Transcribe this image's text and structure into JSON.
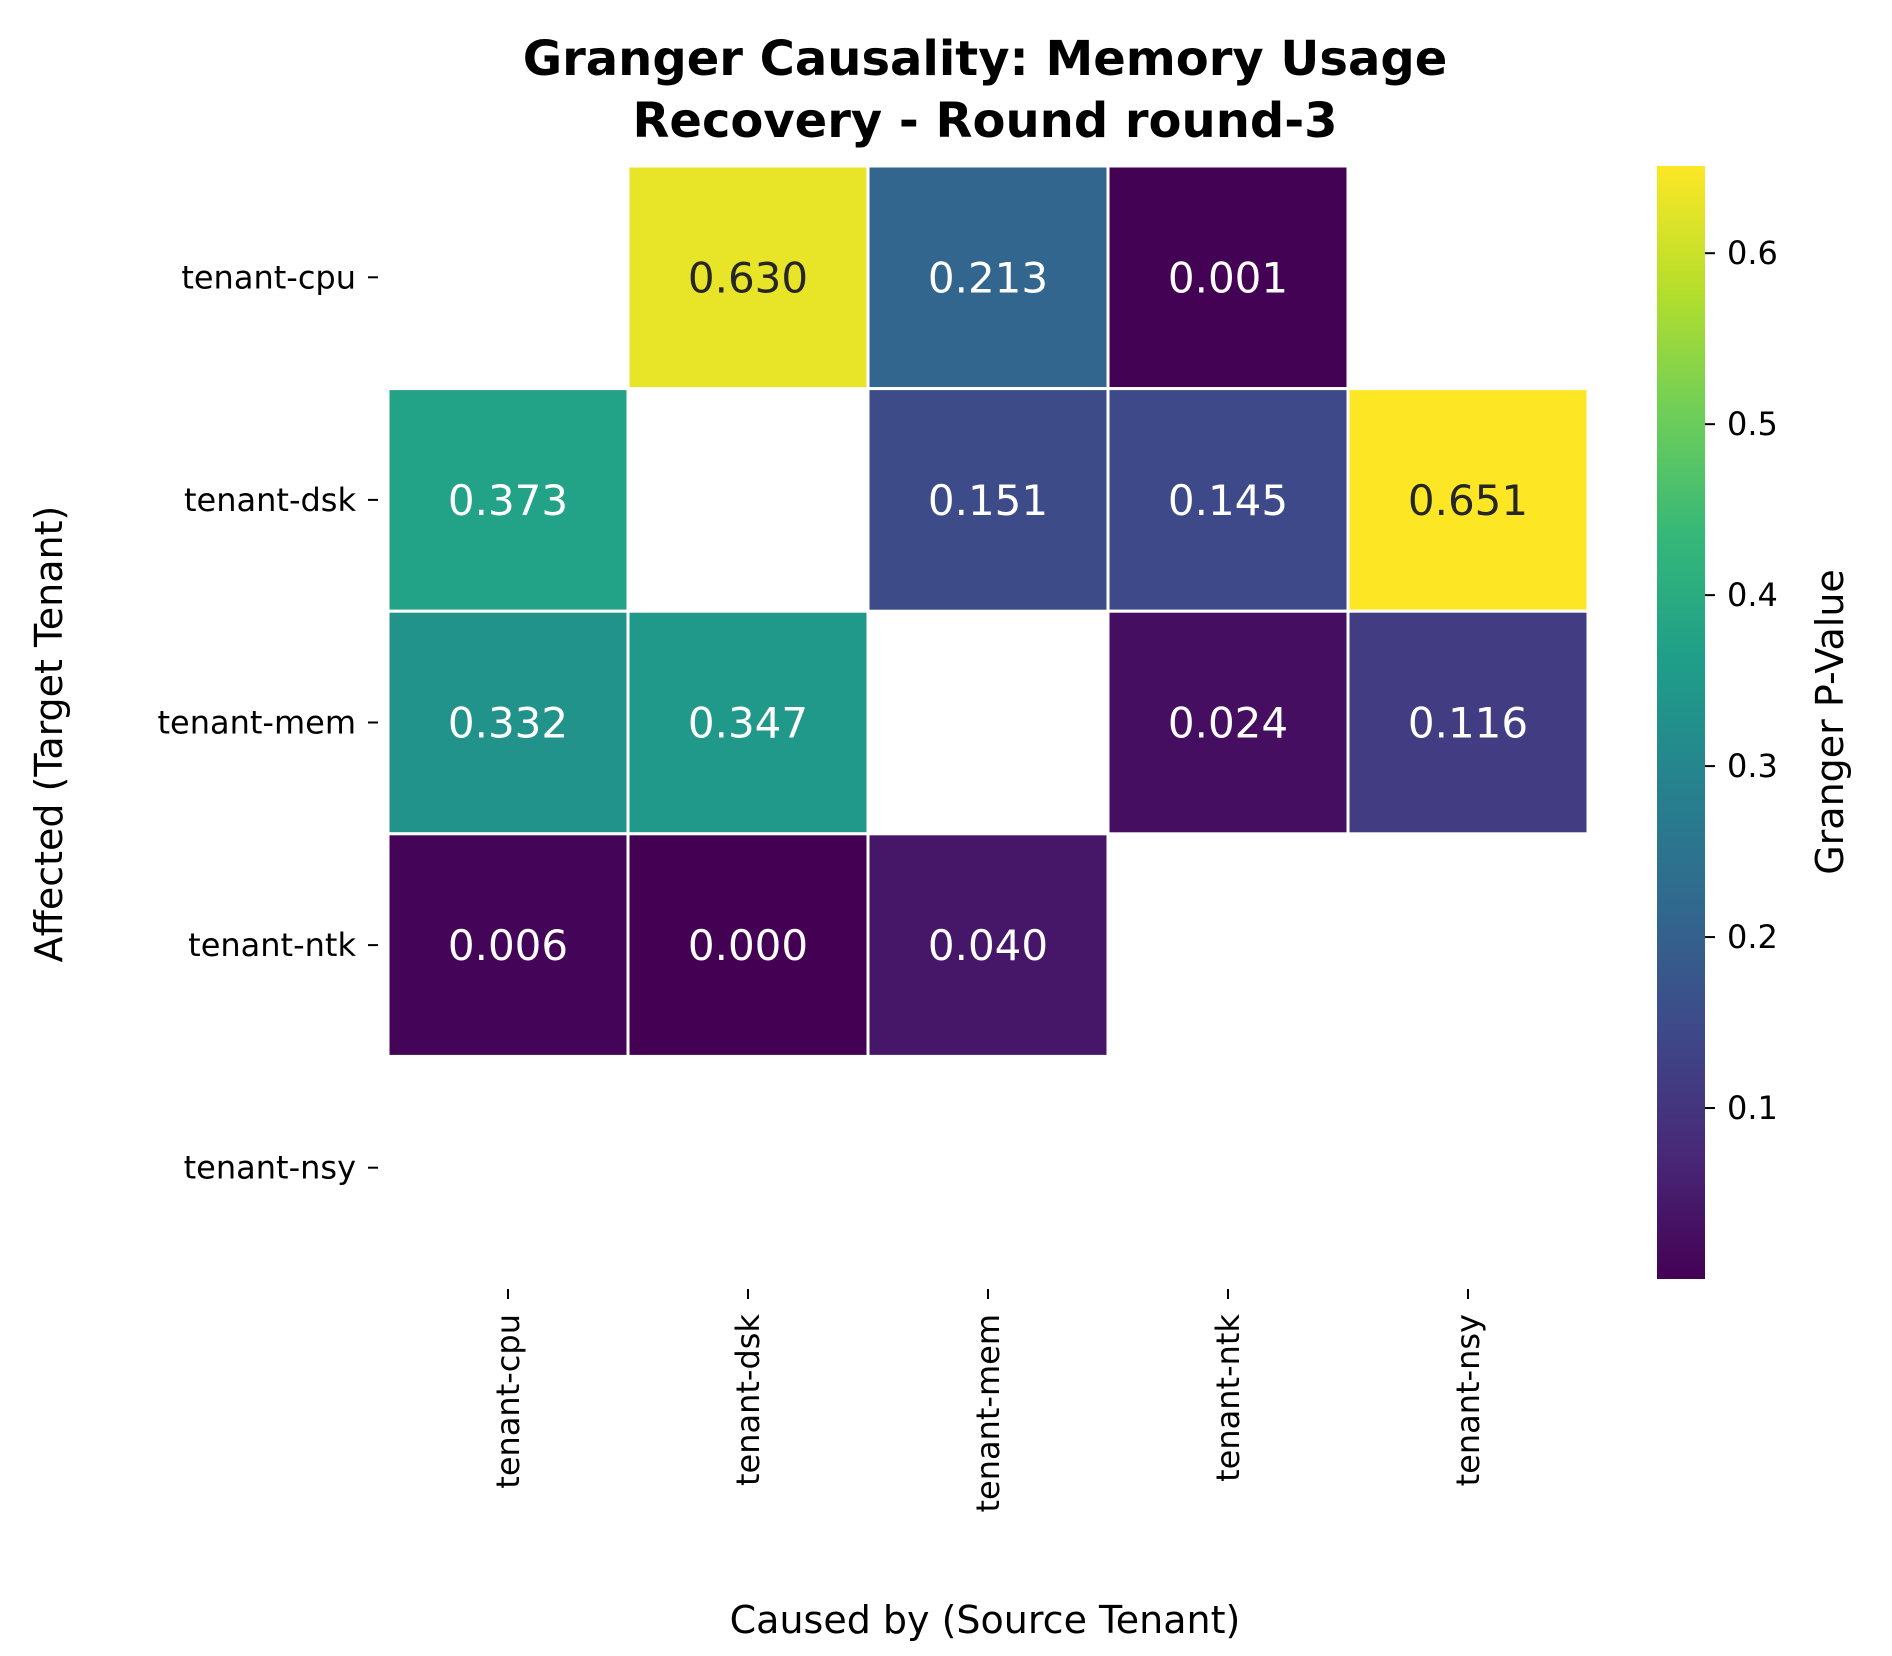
{
  "chart_data": {
    "type": "heatmap",
    "title": [
      "Granger Causality: Memory Usage",
      "Recovery - Round round-3"
    ],
    "xlabel": "Caused by (Source Tenant)",
    "ylabel": "Affected (Target Tenant)",
    "x_categories": [
      "tenant-cpu",
      "tenant-dsk",
      "tenant-mem",
      "tenant-ntk",
      "tenant-nsy"
    ],
    "y_categories": [
      "tenant-cpu",
      "tenant-dsk",
      "tenant-mem",
      "tenant-ntk",
      "tenant-nsy"
    ],
    "values": [
      [
        null,
        0.63,
        0.213,
        0.001,
        null
      ],
      [
        0.373,
        null,
        0.151,
        0.145,
        0.651
      ],
      [
        0.332,
        0.347,
        null,
        0.024,
        0.116
      ],
      [
        0.006,
        0.0,
        0.04,
        null,
        null
      ],
      [
        null,
        null,
        null,
        null,
        null
      ]
    ],
    "value_labels": [
      [
        null,
        "0.630",
        "0.213",
        "0.001",
        null
      ],
      [
        "0.373",
        null,
        "0.151",
        "0.145",
        "0.651"
      ],
      [
        "0.332",
        "0.347",
        null,
        "0.024",
        "0.116"
      ],
      [
        "0.006",
        "0.000",
        "0.040",
        null,
        null
      ],
      [
        null,
        null,
        null,
        null,
        null
      ]
    ],
    "colormap": "viridis",
    "colorbar": {
      "label": "Granger P-Value",
      "range": [
        0.0,
        0.651
      ],
      "ticks": [
        0.1,
        0.2,
        0.3,
        0.4,
        0.5,
        0.6
      ],
      "tick_labels": [
        "0.1",
        "0.2",
        "0.3",
        "0.4",
        "0.5",
        "0.6"
      ]
    },
    "grid": false,
    "legend": "colorbar-right"
  }
}
